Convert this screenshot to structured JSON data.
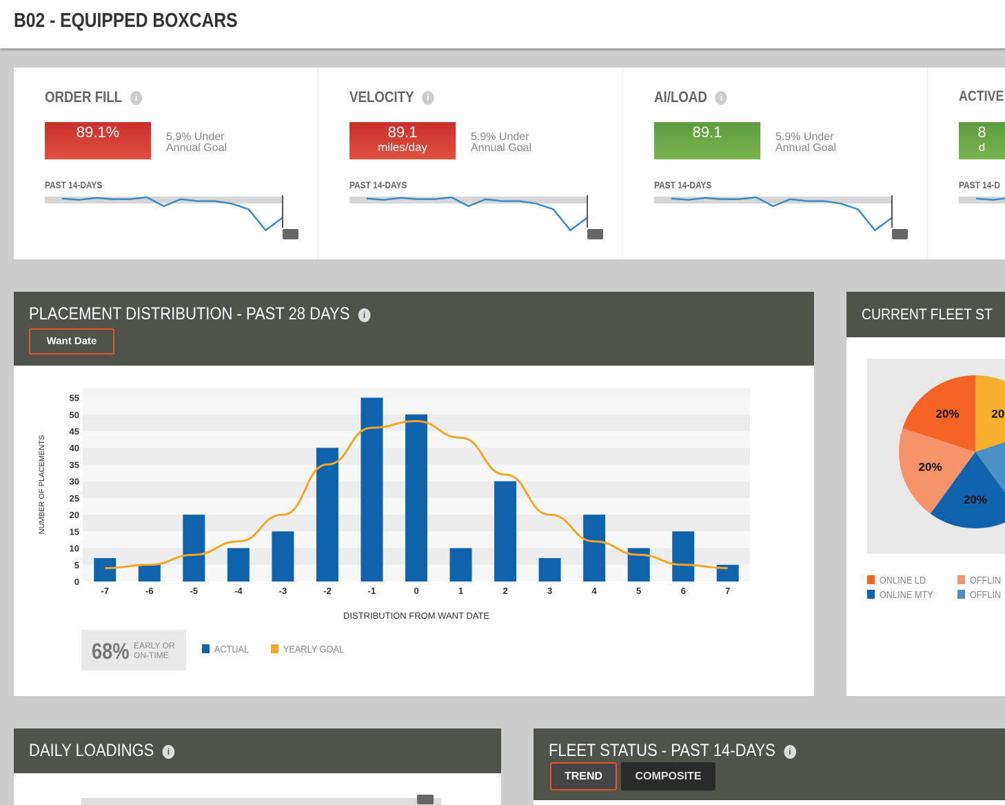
{
  "header": {
    "title": "B02 - EQUIPPED BOXCARS"
  },
  "kpis": [
    {
      "title": "ORDER FILL",
      "value": "89.1%",
      "unit": "",
      "status": "red",
      "note_line1": "5.9% Under",
      "note_line2": "Annual Goal",
      "period": "PAST 14-DAYS",
      "trend": [
        90,
        89.6,
        90.2,
        89.8,
        89.8,
        90.4,
        87.6,
        89.8,
        89.2,
        89.2,
        88.4,
        86.6,
        80,
        84
      ]
    },
    {
      "title": "VELOCITY",
      "value": "89.1",
      "unit": "miles/day",
      "status": "red",
      "note_line1": "5.9% Under",
      "note_line2": "Annual Goal",
      "period": "PAST 14-DAYS",
      "trend": [
        90,
        89.6,
        90.2,
        89.8,
        89.8,
        90.4,
        87.6,
        89.8,
        89.2,
        89.2,
        88.4,
        86.6,
        80,
        84
      ]
    },
    {
      "title": "AI/LOAD",
      "value": "89.1",
      "unit": "",
      "status": "green",
      "note_line1": "5.9% Under",
      "note_line2": "Annual Goal",
      "period": "PAST 14-DAYS",
      "trend": [
        90,
        89.6,
        90.2,
        89.8,
        89.8,
        90.4,
        87.6,
        89.8,
        89.2,
        89.2,
        88.4,
        86.6,
        80,
        84
      ]
    },
    {
      "title": "ACTIVE",
      "value": "8",
      "unit": "d",
      "status": "green",
      "note_line1": "",
      "note_line2": "",
      "period": "PAST 14-D",
      "trend": [
        90,
        89.6,
        90.2
      ]
    }
  ],
  "colors": {
    "red": "#d13a30",
    "green": "#6aa846",
    "panel_header": "#50524c",
    "actual": "#0f63ad",
    "goal": "#f5a623",
    "accent_border": "#e0562a"
  },
  "placement": {
    "title": "PLACEMENT DISTRIBUTION - PAST 28 DAYS",
    "info_icon": "info-icon",
    "want_date_button": "Want Date",
    "summary_value": "68%",
    "summary_line1": "EARLY OR",
    "summary_line2": "ON-TIME"
  },
  "chart_data": {
    "type": "bar",
    "title": "",
    "xlabel": "DISTRIBUTION FROM WANT DATE",
    "ylabel": "NUMBER OF PLACEMENTS",
    "categories": [
      "-7",
      "-6",
      "-5",
      "-4",
      "-3",
      "-2",
      "-1",
      "0",
      "1",
      "2",
      "3",
      "4",
      "5",
      "6",
      "7"
    ],
    "yticks": [
      "0",
      "5",
      "10",
      "15",
      "20",
      "25",
      "30",
      "35",
      "40",
      "45",
      "50",
      "55"
    ],
    "ylim": [
      0,
      58
    ],
    "grid": true,
    "legend": "bottom-left",
    "series": [
      {
        "name": "ACTUAL",
        "type": "bar",
        "color": "#0f63ad",
        "values": [
          7,
          5,
          20,
          10,
          15,
          40,
          55,
          50,
          10,
          30,
          7,
          20,
          10,
          15,
          5
        ]
      },
      {
        "name": "YEARLY GOAL",
        "type": "line",
        "color": "#f5a623",
        "values": [
          4,
          5,
          8,
          12,
          20,
          35,
          46,
          48,
          43,
          32,
          20,
          12,
          8,
          5,
          4
        ]
      }
    ]
  },
  "fleet": {
    "title": "CURRENT FLEET ST",
    "pie": {
      "type": "pie",
      "slices": [
        {
          "value": 20,
          "label": "20%",
          "color": "#f6b02e"
        },
        {
          "value": 20,
          "label": "",
          "color": "#4a92c6"
        },
        {
          "value": 20,
          "label": "20%",
          "color": "#0f63ad"
        },
        {
          "value": 20,
          "label": "20%",
          "color": "#f5936a"
        },
        {
          "value": 20,
          "label": "20%",
          "color": "#f56325"
        }
      ]
    },
    "legend": [
      {
        "label": "ONLINE LD",
        "color": "#f56325"
      },
      {
        "label": "OFFLIN",
        "color": "#f5936a"
      },
      {
        "label": "ONLINE MTY",
        "color": "#0f63ad"
      },
      {
        "label": "OFFLIN",
        "color": "#4a92c6"
      }
    ],
    "top_right_label": "20"
  },
  "daily": {
    "title": "DAILY LOADINGS"
  },
  "fleet_status": {
    "title": "FLEET STATUS - PAST 14-DAYS",
    "tabs": [
      "TREND",
      "COMPOSITE"
    ]
  }
}
